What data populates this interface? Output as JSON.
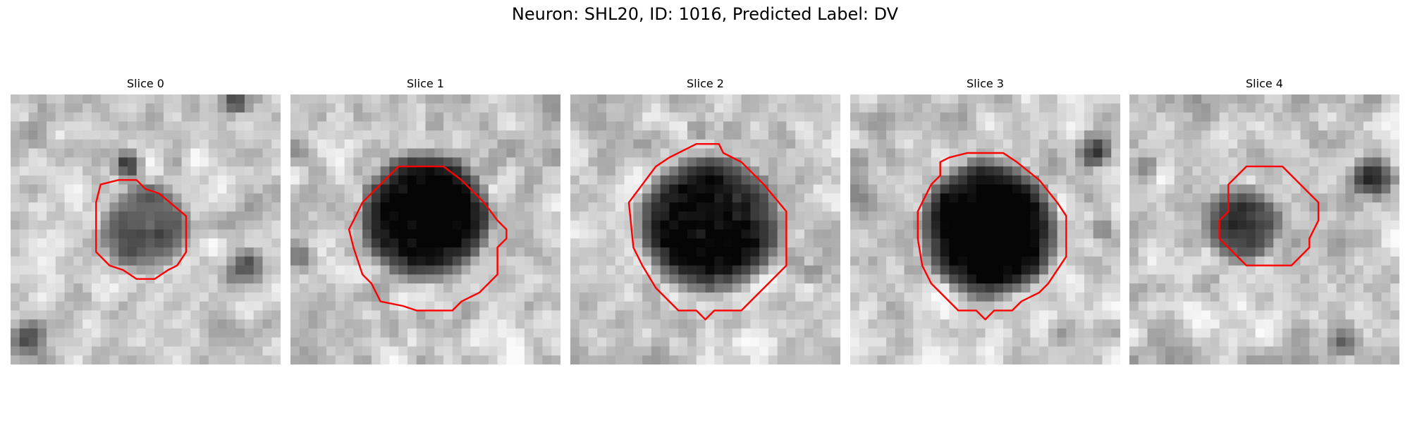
{
  "figure": {
    "title": "Neuron: SHL20, ID: 1016, Predicted Label: DV"
  },
  "panels": [
    {
      "title": "Slice 0",
      "contour_color": "#ff0000"
    },
    {
      "title": "Slice 1",
      "contour_color": "#ff0000"
    },
    {
      "title": "Slice 2",
      "contour_color": "#ff0000"
    },
    {
      "title": "Slice 3",
      "contour_color": "#ff0000"
    },
    {
      "title": "Slice 4",
      "contour_color": "#ff0000"
    }
  ]
}
